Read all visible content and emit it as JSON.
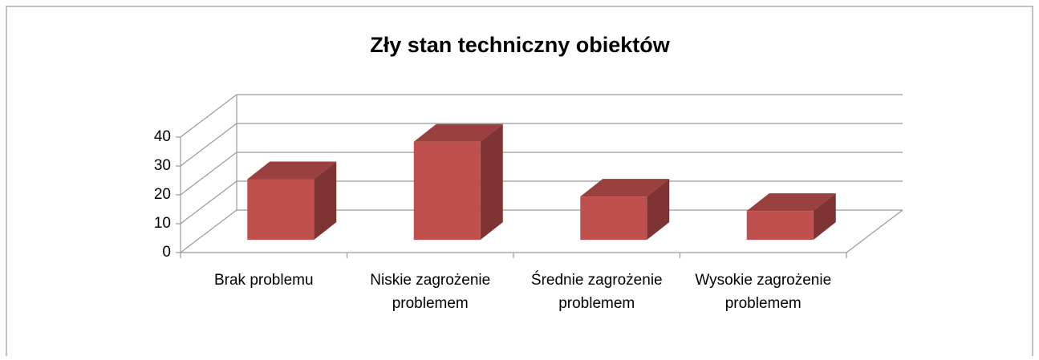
{
  "chart_data": {
    "type": "bar3d",
    "title": "Zły stan techniczny obiektów",
    "categories": [
      "Brak problemu",
      "Niskie zagrożenie problemem",
      "Średnie zagrożenie problemem",
      "Wysokie zagrożenie problemem"
    ],
    "values": [
      21,
      34,
      15,
      10
    ],
    "color": "#c0504d",
    "ylim": [
      0,
      40
    ],
    "yticks": [
      0,
      10,
      20,
      30,
      40
    ],
    "grid": true
  }
}
